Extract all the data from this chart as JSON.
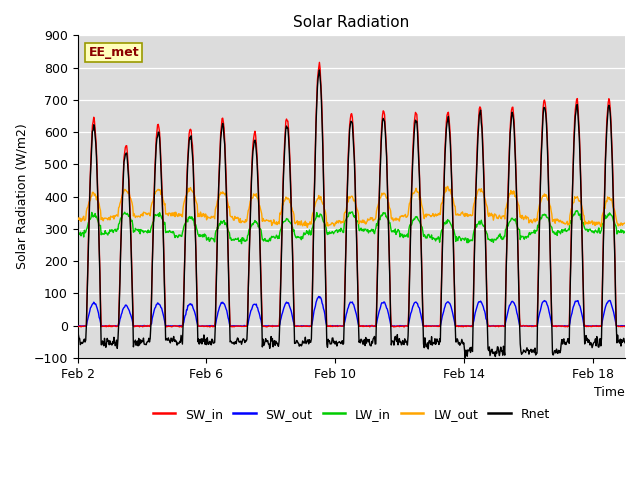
{
  "title": "Solar Radiation",
  "ylabel": "Solar Radiation (W/m2)",
  "xlabel": "Time",
  "ylim": [
    -100,
    900
  ],
  "yticks": [
    -100,
    0,
    100,
    200,
    300,
    400,
    500,
    600,
    700,
    800,
    900
  ],
  "xtick_labels": [
    "Feb 2",
    "Feb 6",
    "Feb 10",
    "Feb 14",
    "Feb 18"
  ],
  "xtick_positions": [
    0,
    4,
    8,
    12,
    16
  ],
  "station_label": "EE_met",
  "colors": {
    "SW_in": "#FF0000",
    "SW_out": "#0000FF",
    "LW_in": "#00CC00",
    "LW_out": "#FFA500",
    "Rnet": "#000000"
  },
  "n_days": 17,
  "background_color": "#DCDCDC",
  "plot_bg_color": "#DCDCDC",
  "title_fontsize": 11,
  "axis_label_fontsize": 9,
  "tick_fontsize": 9,
  "legend_fontsize": 9,
  "sw_in_peaks": [
    640,
    560,
    625,
    610,
    640,
    600,
    640,
    810,
    660,
    665,
    665,
    665,
    680,
    680,
    700,
    700,
    700
  ],
  "lw_out_base": 350,
  "lw_in_base": 295,
  "rnet_night": -50,
  "rnet_night_deep": -80
}
